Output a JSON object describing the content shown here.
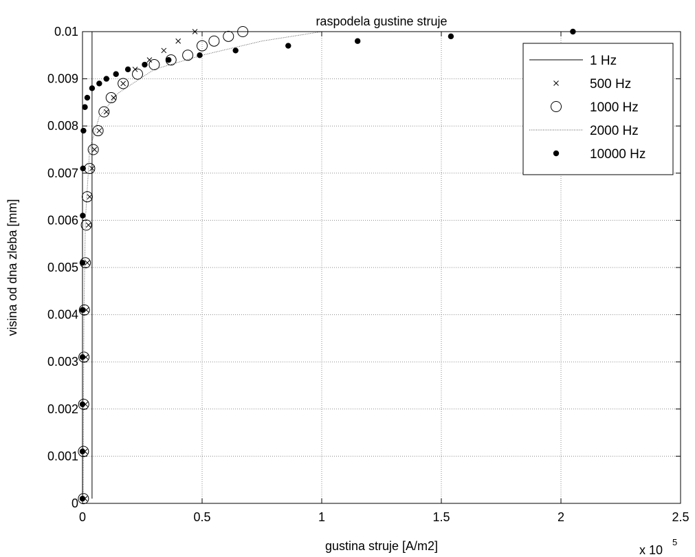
{
  "chart_data": {
    "type": "line",
    "title": "raspodela gustine struje",
    "xlabel": "gustina struje [A/m2]",
    "ylabel": "visina od dna zleba [mm]",
    "x_multiplier": {
      "base": "x 10",
      "exp": "5"
    },
    "xlim": [
      0,
      2.5
    ],
    "ylim": [
      0,
      0.01
    ],
    "xticks": [
      0,
      0.5,
      1,
      1.5,
      2,
      2.5
    ],
    "xtick_labels": [
      "0",
      "0.5",
      "1",
      "1.5",
      "2",
      "2.5"
    ],
    "yticks": [
      0,
      0.001,
      0.002,
      0.003,
      0.004,
      0.005,
      0.006,
      0.007,
      0.008,
      0.009,
      0.01
    ],
    "ytick_labels": [
      "0",
      "0.001",
      "0.002",
      "0.003",
      "0.004",
      "0.005",
      "0.006",
      "0.007",
      "0.008",
      "0.009",
      "0.01"
    ],
    "grid": true,
    "legend_position": "top-right",
    "series": [
      {
        "name": "1 Hz",
        "style": "solid",
        "points": [
          [
            0.04,
            0.0001
          ],
          [
            0.04,
            0.01
          ]
        ]
      },
      {
        "name": "500 Hz",
        "style": "x-marker",
        "points": [
          [
            0.01,
            0.0001
          ],
          [
            0.01,
            0.0011
          ],
          [
            0.012,
            0.0021
          ],
          [
            0.014,
            0.0031
          ],
          [
            0.016,
            0.0041
          ],
          [
            0.02,
            0.0051
          ],
          [
            0.025,
            0.0059
          ],
          [
            0.03,
            0.0065
          ],
          [
            0.04,
            0.0071
          ],
          [
            0.05,
            0.0075
          ],
          [
            0.07,
            0.0079
          ],
          [
            0.1,
            0.0083
          ],
          [
            0.13,
            0.0086
          ],
          [
            0.17,
            0.0089
          ],
          [
            0.22,
            0.0092
          ],
          [
            0.28,
            0.0094
          ],
          [
            0.34,
            0.0096
          ],
          [
            0.4,
            0.0098
          ],
          [
            0.47,
            0.01
          ]
        ]
      },
      {
        "name": "1000 Hz",
        "style": "circle-marker",
        "points": [
          [
            0.004,
            0.0001
          ],
          [
            0.004,
            0.0011
          ],
          [
            0.005,
            0.0021
          ],
          [
            0.006,
            0.0031
          ],
          [
            0.008,
            0.0041
          ],
          [
            0.012,
            0.0051
          ],
          [
            0.016,
            0.0059
          ],
          [
            0.02,
            0.0065
          ],
          [
            0.03,
            0.0071
          ],
          [
            0.045,
            0.0075
          ],
          [
            0.065,
            0.0079
          ],
          [
            0.09,
            0.0083
          ],
          [
            0.12,
            0.0086
          ],
          [
            0.17,
            0.0089
          ],
          [
            0.23,
            0.0091
          ],
          [
            0.3,
            0.0093
          ],
          [
            0.37,
            0.0094
          ],
          [
            0.44,
            0.0095
          ],
          [
            0.5,
            0.0097
          ],
          [
            0.55,
            0.0098
          ],
          [
            0.61,
            0.0099
          ],
          [
            0.67,
            0.01
          ]
        ]
      },
      {
        "name": "2000 Hz",
        "style": "dotted",
        "points": [
          [
            0.003,
            0.0001
          ],
          [
            0.004,
            0.002
          ],
          [
            0.006,
            0.004
          ],
          [
            0.012,
            0.006
          ],
          [
            0.03,
            0.0075
          ],
          [
            0.07,
            0.0082
          ],
          [
            0.15,
            0.0087
          ],
          [
            0.3,
            0.0092
          ],
          [
            0.5,
            0.0095
          ],
          [
            0.75,
            0.0098
          ],
          [
            1.0,
            0.01
          ],
          [
            1.5,
            0.01
          ],
          [
            2.0,
            0.01
          ]
        ]
      },
      {
        "name": "10000 Hz",
        "style": "dot-marker",
        "points": [
          [
            0.0,
            0.0001
          ],
          [
            0.0,
            0.0011
          ],
          [
            0.0,
            0.0021
          ],
          [
            0.0,
            0.0031
          ],
          [
            0.0,
            0.0041
          ],
          [
            0.0,
            0.0051
          ],
          [
            0.001,
            0.0061
          ],
          [
            0.002,
            0.0071
          ],
          [
            0.004,
            0.0079
          ],
          [
            0.01,
            0.0084
          ],
          [
            0.02,
            0.0086
          ],
          [
            0.04,
            0.0088
          ],
          [
            0.07,
            0.0089
          ],
          [
            0.1,
            0.009
          ],
          [
            0.14,
            0.0091
          ],
          [
            0.19,
            0.0092
          ],
          [
            0.26,
            0.0093
          ],
          [
            0.36,
            0.0094
          ],
          [
            0.49,
            0.0095
          ],
          [
            0.64,
            0.0096
          ],
          [
            0.86,
            0.0097
          ],
          [
            1.15,
            0.0098
          ],
          [
            1.54,
            0.0099
          ],
          [
            2.05,
            0.01
          ]
        ]
      }
    ]
  }
}
